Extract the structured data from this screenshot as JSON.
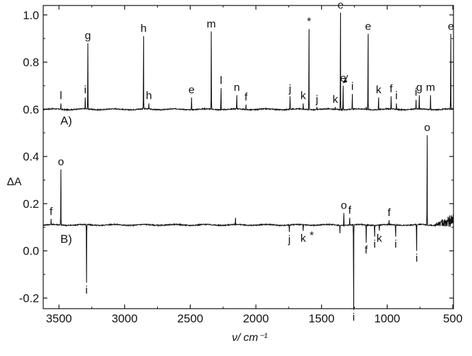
{
  "chart_data": {
    "type": "line",
    "xlabel": "ν/ cm⁻¹",
    "ylabel": "ΔA",
    "xlim": [
      3620,
      495
    ],
    "ylim": [
      -0.245,
      1.04
    ],
    "x_ticks": [
      "3500",
      "3000",
      "2500",
      "2000",
      "1500",
      "1000",
      "500"
    ],
    "y_ticks": [
      "-0.2",
      "0.0",
      "0.2",
      "0.4",
      "0.6",
      "0.8",
      "1.0"
    ],
    "grid": false,
    "series": [
      {
        "panel_label": "A)",
        "baseline": 0.6,
        "color": "#111111",
        "peaks": [
          {
            "x": 3485,
            "y": 0.625,
            "label": "l"
          },
          {
            "x": 3300,
            "y": 0.65,
            "label": "i"
          },
          {
            "x": 3280,
            "y": 0.88,
            "label": "g"
          },
          {
            "x": 2855,
            "y": 0.91,
            "label": "h"
          },
          {
            "x": 2815,
            "y": 0.625,
            "label": "h"
          },
          {
            "x": 2490,
            "y": 0.65,
            "label": "e"
          },
          {
            "x": 2340,
            "y": 0.93,
            "label": "m"
          },
          {
            "x": 2265,
            "y": 0.69,
            "label": "l"
          },
          {
            "x": 2145,
            "y": 0.66,
            "label": "n"
          },
          {
            "x": 2075,
            "y": 0.62,
            "label": "f"
          },
          {
            "x": 1740,
            "y": 0.655,
            "label": "j"
          },
          {
            "x": 1640,
            "y": 0.625,
            "label": "k"
          },
          {
            "x": 1595,
            "y": 0.94,
            "label": "*"
          },
          {
            "x": 1535,
            "y": 0.61,
            "label": "j"
          },
          {
            "x": 1395,
            "y": 0.61,
            "label": "k"
          },
          {
            "x": 1355,
            "y": 1.01,
            "label": "e"
          },
          {
            "x": 1335,
            "y": 0.7,
            "label": "e"
          },
          {
            "x": 1265,
            "y": 0.665,
            "label": "i"
          },
          {
            "x": 1160,
            "y": 0.61,
            "label": ""
          },
          {
            "x": 1145,
            "y": 0.92,
            "label": "e"
          },
          {
            "x": 1065,
            "y": 0.65,
            "label": "k"
          },
          {
            "x": 970,
            "y": 0.655,
            "label": "f"
          },
          {
            "x": 930,
            "y": 0.625,
            "label": "i"
          },
          {
            "x": 780,
            "y": 0.64,
            "label": "i"
          },
          {
            "x": 755,
            "y": 0.66,
            "label": "g"
          },
          {
            "x": 670,
            "y": 0.66,
            "label": "m"
          },
          {
            "x": 515,
            "y": 0.92,
            "label": "e"
          }
        ]
      },
      {
        "panel_label": "B)",
        "baseline": 0.11,
        "color": "#111111",
        "peaks": [
          {
            "x": 3560,
            "y": 0.135,
            "label": "f"
          },
          {
            "x": 3485,
            "y": 0.345,
            "label": "o"
          },
          {
            "x": 3290,
            "y": -0.135,
            "label": "i"
          },
          {
            "x": 2155,
            "y": 0.14,
            "label": ""
          },
          {
            "x": 1745,
            "y": 0.08,
            "label": "j"
          },
          {
            "x": 1640,
            "y": 0.085,
            "label": "k"
          },
          {
            "x": 1360,
            "y": 0.075,
            "label": ""
          },
          {
            "x": 1330,
            "y": 0.16,
            "label": "o"
          },
          {
            "x": 1285,
            "y": 0.14,
            "label": "f"
          },
          {
            "x": 1255,
            "y": -0.25,
            "label": "i"
          },
          {
            "x": 1160,
            "y": 0.035,
            "label": "f"
          },
          {
            "x": 1095,
            "y": 0.06,
            "label": "i"
          },
          {
            "x": 1060,
            "y": 0.085,
            "label": "k"
          },
          {
            "x": 985,
            "y": 0.13,
            "label": "f"
          },
          {
            "x": 935,
            "y": 0.06,
            "label": "i"
          },
          {
            "x": 775,
            "y": 0.0,
            "label": "i"
          },
          {
            "x": 695,
            "y": 0.49,
            "label": "o"
          }
        ],
        "noise_region": [
          640,
          495
        ]
      }
    ],
    "annotations": [
      {
        "text": "*",
        "x": 1575,
        "y": 0.085
      }
    ]
  }
}
